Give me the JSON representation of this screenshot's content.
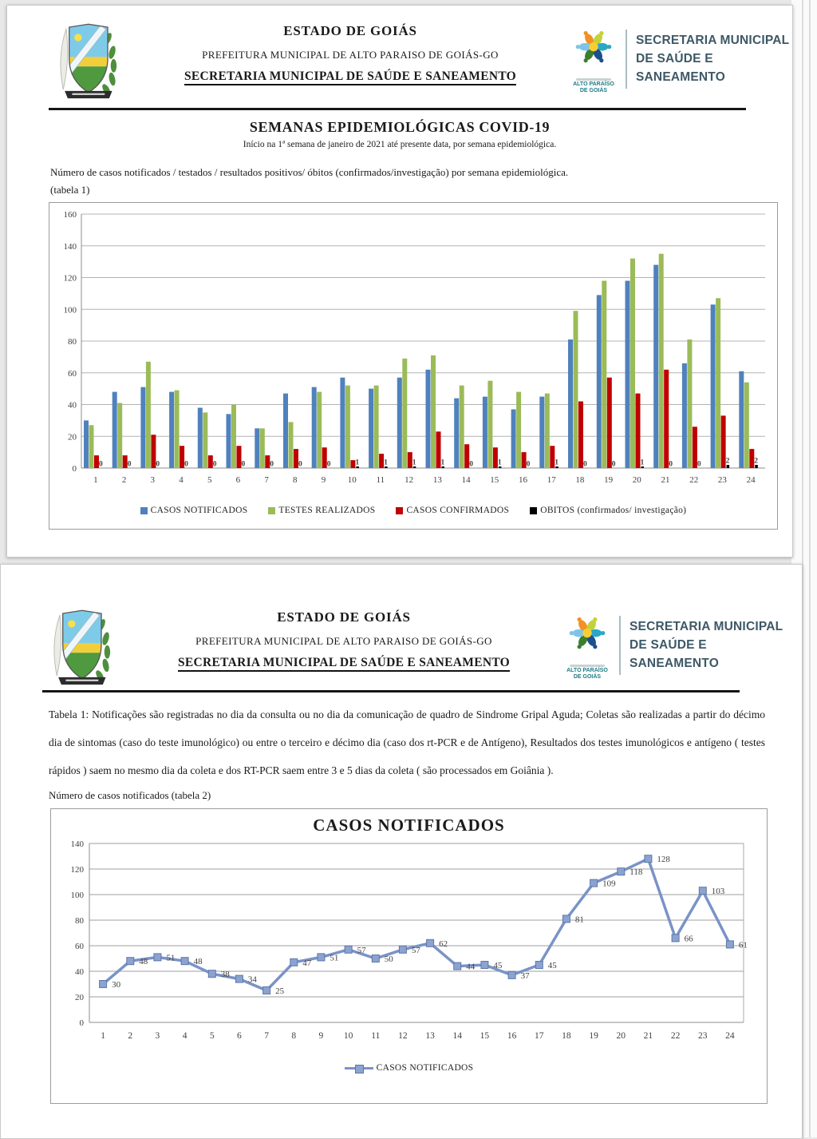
{
  "header": {
    "state": "ESTADO DE GOIÁS",
    "municipality": "PREFEITURA MUNICIPAL DE ALTO PARAISO DE GOIÁS-GO",
    "department": "SECRETARIA MUNICIPAL DE SAÚDE E SANEAMENTO",
    "sms_line1": "SECRETARIA MUNICIPAL",
    "sms_line2": "DE SAÚDE E",
    "sms_line3": "SANEAMENTO",
    "logo_caption1": "ALTO PARAÍSO",
    "logo_caption2": "DE GOIÁS"
  },
  "page1": {
    "title": "SEMANAS EPIDEMIOLÓGICAS COVID-19",
    "subtitle": "Início na 1ª semana de janeiro de 2021 até presente data, por semana epidemiológica.",
    "caption_line1": "Número de casos notificados / testados / resultados positivos/ óbitos (confirmados/investigação) por semana epidemiológica.",
    "caption_line2": "(tabela 1)"
  },
  "page2": {
    "paragraph": "Tabela 1: Notificações são registradas no dia da consulta ou no dia da comunicação de quadro de Sindrome Gripal Aguda; Coletas são realizadas a partir do décimo dia de sintomas (caso do teste imunológico) ou entre o terceiro e décimo dia (caso dos rt-PCR e de Antígeno), Resultados dos testes imunológicos e antígeno ( testes rápidos ) saem no mesmo dia da coleta e dos RT-PCR saem entre 3 e 5 dias da coleta ( são processados em Goiânia ).",
    "caption": "Número de casos notificados (tabela 2)"
  },
  "chart_data": [
    {
      "type": "bar",
      "title": "",
      "categories": [
        "1",
        "2",
        "3",
        "4",
        "5",
        "6",
        "7",
        "8",
        "9",
        "10",
        "11",
        "12",
        "13",
        "14",
        "15",
        "16",
        "17",
        "18",
        "19",
        "20",
        "21",
        "22",
        "23",
        "24"
      ],
      "series": [
        {
          "name": "CASOS NOTIFICADOS",
          "color": "#4f81bd",
          "values": [
            30,
            48,
            51,
            48,
            38,
            34,
            25,
            47,
            51,
            57,
            50,
            57,
            62,
            44,
            45,
            37,
            45,
            81,
            109,
            118,
            128,
            66,
            103,
            61
          ]
        },
        {
          "name": "TESTES REALIZADOS",
          "color": "#9bbb59",
          "values": [
            27,
            41,
            67,
            49,
            35,
            40,
            25,
            29,
            48,
            52,
            52,
            69,
            71,
            52,
            55,
            48,
            47,
            99,
            118,
            132,
            135,
            81,
            107,
            54
          ]
        },
        {
          "name": "CASOS CONFIRMADOS",
          "color": "#c00000",
          "values": [
            8,
            8,
            21,
            14,
            8,
            14,
            8,
            12,
            13,
            5,
            9,
            10,
            23,
            15,
            13,
            10,
            14,
            42,
            57,
            47,
            62,
            26,
            33,
            12
          ]
        },
        {
          "name": "OBITOS (confirmados/ investigação)",
          "color": "#000000",
          "data_labels": true,
          "values": [
            0,
            0,
            0,
            0,
            0,
            0,
            0,
            0,
            0,
            1,
            1,
            1,
            1,
            0,
            1,
            0,
            1,
            0,
            0,
            1,
            0,
            0,
            2,
            2
          ]
        }
      ],
      "ylim": [
        0,
        160
      ],
      "ytick_step": 20,
      "grid": true,
      "legend_position": "bottom"
    },
    {
      "type": "line",
      "title": "CASOS NOTIFICADOS",
      "categories": [
        "1",
        "2",
        "3",
        "4",
        "5",
        "6",
        "7",
        "8",
        "9",
        "10",
        "11",
        "12",
        "13",
        "14",
        "15",
        "16",
        "17",
        "18",
        "19",
        "20",
        "21",
        "22",
        "23",
        "24"
      ],
      "series": [
        {
          "name": "CASOS NOTIFICADOS",
          "color": "#7a93c7",
          "marker": "square",
          "data_labels": true,
          "values": [
            30,
            48,
            51,
            48,
            38,
            34,
            25,
            47,
            51,
            57,
            50,
            57,
            62,
            44,
            45,
            37,
            45,
            81,
            109,
            118,
            128,
            66,
            103,
            61
          ]
        }
      ],
      "ylim": [
        0,
        140
      ],
      "ytick_step": 20,
      "grid": true,
      "legend_position": "bottom"
    }
  ]
}
